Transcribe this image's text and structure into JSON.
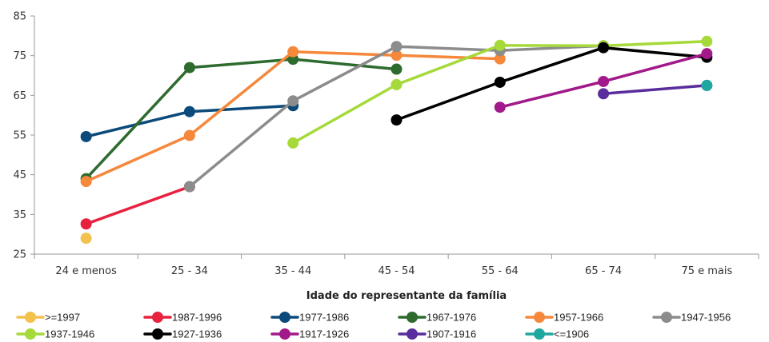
{
  "chart_data": {
    "type": "line",
    "xlabel": "Idade do representante da família",
    "ylabel": "",
    "categories": [
      "24 e menos",
      "25 - 34",
      "35 - 44",
      "45 - 54",
      "55 - 64",
      "65 - 74",
      "75 e mais"
    ],
    "ylim": [
      25,
      85
    ],
    "yticks": [
      25,
      35,
      45,
      55,
      65,
      75,
      85
    ],
    "legend_position": "bottom",
    "series": [
      {
        "name": ">=1997",
        "color": "#f2c14e",
        "values": [
          29,
          null,
          null,
          null,
          null,
          null,
          null
        ]
      },
      {
        "name": "1987-1996",
        "color": "#e8213f",
        "values": [
          32.6,
          42,
          null,
          null,
          null,
          null,
          null
        ]
      },
      {
        "name": "1977-1986",
        "color": "#0b4a7a",
        "values": [
          54.6,
          60.9,
          62.4,
          null,
          null,
          null,
          null
        ]
      },
      {
        "name": "1967-1976",
        "color": "#2e6b2e",
        "values": [
          44,
          72,
          74.1,
          71.6,
          null,
          null,
          null
        ]
      },
      {
        "name": "1957-1966",
        "color": "#f5883b",
        "values": [
          43.3,
          54.9,
          76,
          75.1,
          74.2,
          null,
          null
        ]
      },
      {
        "name": "1947-1956",
        "color": "#8c8c8c",
        "values": [
          null,
          42,
          63.6,
          77.3,
          76.3,
          77.5,
          null
        ]
      },
      {
        "name": "1937-1946",
        "color": "#a6d93a",
        "values": [
          null,
          null,
          53,
          67.7,
          77.6,
          77.5,
          78.6
        ]
      },
      {
        "name": "1927-1936",
        "color": "#000000",
        "values": [
          null,
          null,
          null,
          58.8,
          68.3,
          77,
          74.6
        ]
      },
      {
        "name": "1917-1926",
        "color": "#a21a8a",
        "values": [
          null,
          null,
          null,
          null,
          62,
          68.5,
          75.5
        ]
      },
      {
        "name": "1907-1916",
        "color": "#5a2d9c",
        "values": [
          null,
          null,
          null,
          null,
          null,
          65.4,
          67.5
        ]
      },
      {
        "name": "<=1906",
        "color": "#1fa7a0",
        "values": [
          null,
          null,
          null,
          null,
          null,
          null,
          67.5
        ]
      }
    ]
  }
}
